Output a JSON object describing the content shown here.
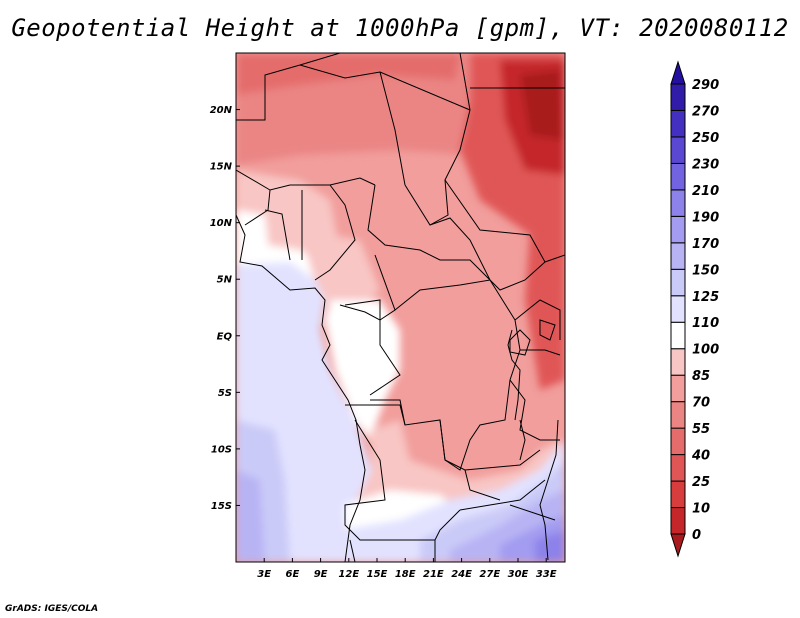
{
  "title": "Geopotential Height at 1000hPa [gpm], VT: 2020080112",
  "credit": "GrADS: IGES/COLA",
  "map": {
    "lat_ticks": [
      "20N",
      "15N",
      "10N",
      "5N",
      "EQ",
      "5S",
      "10S",
      "15S"
    ],
    "lon_ticks": [
      "3E",
      "6E",
      "9E",
      "12E",
      "15E",
      "18E",
      "21E",
      "24E",
      "27E",
      "30E",
      "33E"
    ],
    "extent": {
      "lon_min": 0,
      "lon_max": 35,
      "lat_min": -20,
      "lat_max": 25
    }
  },
  "colorbar": {
    "levels": [
      "0",
      "10",
      "25",
      "40",
      "55",
      "70",
      "85",
      "100",
      "110",
      "125",
      "150",
      "170",
      "190",
      "210",
      "230",
      "250",
      "270",
      "290"
    ],
    "colors": [
      "#a81a1e",
      "#c4262a",
      "#d63d3c",
      "#e05656",
      "#e46d6c",
      "#ea8584",
      "#f19e9c",
      "#f8c6c4",
      "#ffffff",
      "#e2e2ff",
      "#cacaf8",
      "#b8b4f4",
      "#a39cf0",
      "#8c82ea",
      "#7264e0",
      "#5a48d2",
      "#4430c0",
      "#301ca8",
      "#2410a0"
    ]
  }
}
